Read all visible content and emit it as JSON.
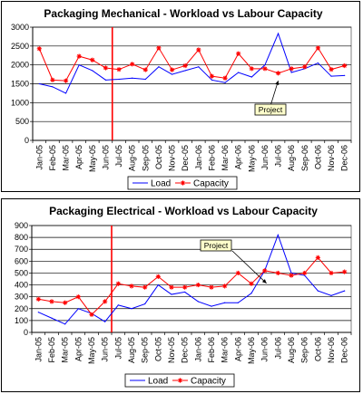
{
  "chart_data": [
    {
      "type": "line",
      "title": "Packaging Mechanical - Workload vs Labour Capacity",
      "xlabel": "",
      "ylabel": "",
      "ylim": [
        0,
        3000
      ],
      "yticks": [
        0,
        500,
        1000,
        1500,
        2000,
        2500,
        3000
      ],
      "grid": true,
      "legend": "bottom",
      "categories": [
        "Jan-05",
        "Feb-05",
        "Mar-05",
        "Apr-05",
        "May-05",
        "Jun-05",
        "Jul-05",
        "Aug-05",
        "Sep-05",
        "Oct-05",
        "Nov-05",
        "Dec-05",
        "Jan-06",
        "Feb-06",
        "Mar-06",
        "Apr-06",
        "May-06",
        "Jun-06",
        "Jul-06",
        "Aug-06",
        "Sep-06",
        "Oct-06",
        "Nov-06",
        "Dec-06"
      ],
      "series": [
        {
          "name": "Load",
          "color": "#0000ff",
          "marker": "none",
          "values": [
            1500,
            1420,
            1250,
            2000,
            1850,
            1600,
            1620,
            1650,
            1620,
            1950,
            1750,
            1850,
            1950,
            1600,
            1530,
            1800,
            1680,
            2000,
            2830,
            1800,
            1900,
            2050,
            1700,
            1720
          ]
        },
        {
          "name": "Capacity",
          "color": "#ff0000",
          "marker": "star",
          "values": [
            2430,
            1600,
            1580,
            2230,
            2130,
            1920,
            1880,
            2020,
            1870,
            2450,
            1870,
            1980,
            2400,
            1700,
            1650,
            2300,
            1900,
            1900,
            1780,
            1900,
            1950,
            2450,
            1880,
            1980
          ]
        }
      ],
      "divider_after": "Jun-05",
      "annotation": {
        "text": "Project",
        "points_to": "Jul-06"
      }
    },
    {
      "type": "line",
      "title": "Packaging Electrical - Workload vs Labour Capacity",
      "xlabel": "",
      "ylabel": "",
      "ylim": [
        0,
        900
      ],
      "yticks": [
        0,
        100,
        200,
        300,
        400,
        500,
        600,
        700,
        800,
        900
      ],
      "grid": true,
      "legend": "bottom",
      "categories": [
        "Jan-05",
        "Feb-05",
        "Mar-05",
        "Apr-05",
        "May-05",
        "Jun-05",
        "Jul-05",
        "Aug-05",
        "Sep-05",
        "Oct-05",
        "Nov-05",
        "Dec-05",
        "Jan-06",
        "Feb-06",
        "Mar-06",
        "Apr-06",
        "May-06",
        "Jun-06",
        "Jul-06",
        "Aug-06",
        "Sep-06",
        "Oct-06",
        "Nov-06",
        "Dec-06"
      ],
      "series": [
        {
          "name": "Load",
          "color": "#0000ff",
          "marker": "none",
          "values": [
            170,
            120,
            70,
            200,
            160,
            90,
            230,
            200,
            240,
            400,
            320,
            340,
            260,
            220,
            250,
            250,
            330,
            520,
            820,
            500,
            480,
            350,
            310,
            350
          ]
        },
        {
          "name": "Capacity",
          "color": "#ff0000",
          "marker": "star",
          "values": [
            280,
            260,
            250,
            300,
            150,
            260,
            410,
            390,
            380,
            470,
            380,
            380,
            400,
            380,
            390,
            500,
            410,
            520,
            500,
            480,
            500,
            630,
            500,
            510
          ]
        }
      ],
      "divider_after": "Jun-05",
      "annotation": {
        "text": "Project",
        "points_to": "Jun-06"
      }
    }
  ]
}
